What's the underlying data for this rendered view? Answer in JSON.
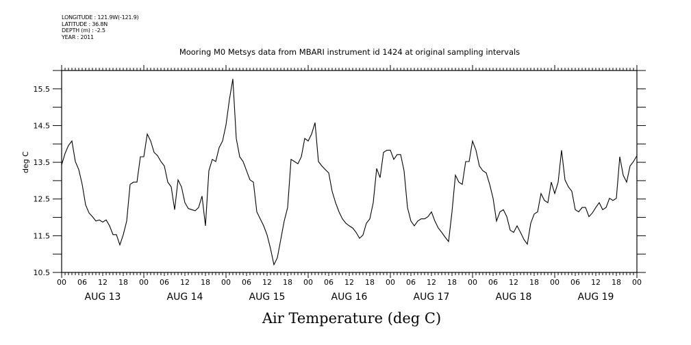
{
  "header": {
    "longitude": "LONGITUDE : 121.9W(-121.9)",
    "latitude": "LATITUDE : 36.8N",
    "depth": "DEPTH (m) : -2.5",
    "year": "YEAR : 2011"
  },
  "chart_data": {
    "type": "line",
    "title": "Mooring M0 Metsys data from MBARI instrument id 1424 at original sampling intervals",
    "xlabel": "Air Temperature (deg C)",
    "ylabel": "deg C",
    "ylim": [
      10.5,
      16.0
    ],
    "yticks": [
      10.5,
      11.0,
      11.5,
      12.0,
      12.5,
      13.0,
      13.5,
      14.0,
      14.5,
      15.0,
      15.5,
      16.0
    ],
    "ytick_labels": [
      "10.5",
      "11.5",
      "12.5",
      "13.5",
      "14.5",
      "15.5"
    ],
    "x_units": "hours since 2011-08-13 00:00",
    "xlim": [
      0,
      168
    ],
    "hour_tick_labels": [
      "00",
      "06",
      "12",
      "18",
      "00",
      "06",
      "12",
      "18",
      "00",
      "06",
      "12",
      "18",
      "00",
      "06",
      "12",
      "18",
      "00",
      "06",
      "12",
      "18",
      "00",
      "06",
      "12",
      "18",
      "00",
      "06",
      "12",
      "18",
      "00"
    ],
    "day_labels": [
      "AUG 13",
      "AUG 14",
      "AUG 15",
      "AUG 16",
      "AUG 17",
      "AUG 18",
      "AUG 19"
    ],
    "grid": false,
    "series": [
      {
        "name": "Air Temperature",
        "color": "#000000",
        "values": [
          13.43,
          13.74,
          13.96,
          14.08,
          13.52,
          13.3,
          12.9,
          12.34,
          12.12,
          12.02,
          11.9,
          11.93,
          11.87,
          11.93,
          11.77,
          11.53,
          11.53,
          11.25,
          11.53,
          11.9,
          12.9,
          12.96,
          12.96,
          13.65,
          13.65,
          14.27,
          14.08,
          13.77,
          13.68,
          13.52,
          13.4,
          12.96,
          12.83,
          12.21,
          13.02,
          12.83,
          12.4,
          12.24,
          12.21,
          12.18,
          12.27,
          12.58,
          11.77,
          13.27,
          13.58,
          13.52,
          13.9,
          14.08,
          14.52,
          15.21,
          15.77,
          14.15,
          13.65,
          13.52,
          13.27,
          13.02,
          12.96,
          12.15,
          11.96,
          11.77,
          11.52,
          11.15,
          10.71,
          10.9,
          11.4,
          11.9,
          12.27,
          13.58,
          13.52,
          13.46,
          13.65,
          14.15,
          14.08,
          14.27,
          14.58,
          13.52,
          13.4,
          13.3,
          13.21,
          12.71,
          12.4,
          12.15,
          11.96,
          11.84,
          11.77,
          11.71,
          11.59,
          11.43,
          11.52,
          11.84,
          11.96,
          12.4,
          13.33,
          13.08,
          13.77,
          13.83,
          13.83,
          13.58,
          13.71,
          13.71,
          13.27,
          12.27,
          11.9,
          11.77,
          11.9,
          11.96,
          11.96,
          12.02,
          12.15,
          11.9,
          11.71,
          11.59,
          11.46,
          11.34,
          12.15,
          13.15,
          12.96,
          12.9,
          13.52,
          13.52,
          14.08,
          13.83,
          13.4,
          13.27,
          13.21,
          12.9,
          12.52,
          11.9,
          12.15,
          12.21,
          12.02,
          11.65,
          11.59,
          11.77,
          11.59,
          11.4,
          11.27,
          11.84,
          12.09,
          12.15,
          12.65,
          12.46,
          12.4,
          12.96,
          12.65,
          12.96,
          13.83,
          13.02,
          12.83,
          12.71,
          12.21,
          12.15,
          12.27,
          12.27,
          12.02,
          12.12,
          12.27,
          12.4,
          12.21,
          12.27,
          12.52,
          12.46,
          12.52,
          13.65,
          13.15,
          12.96,
          13.4,
          13.52,
          13.68
        ]
      }
    ]
  }
}
